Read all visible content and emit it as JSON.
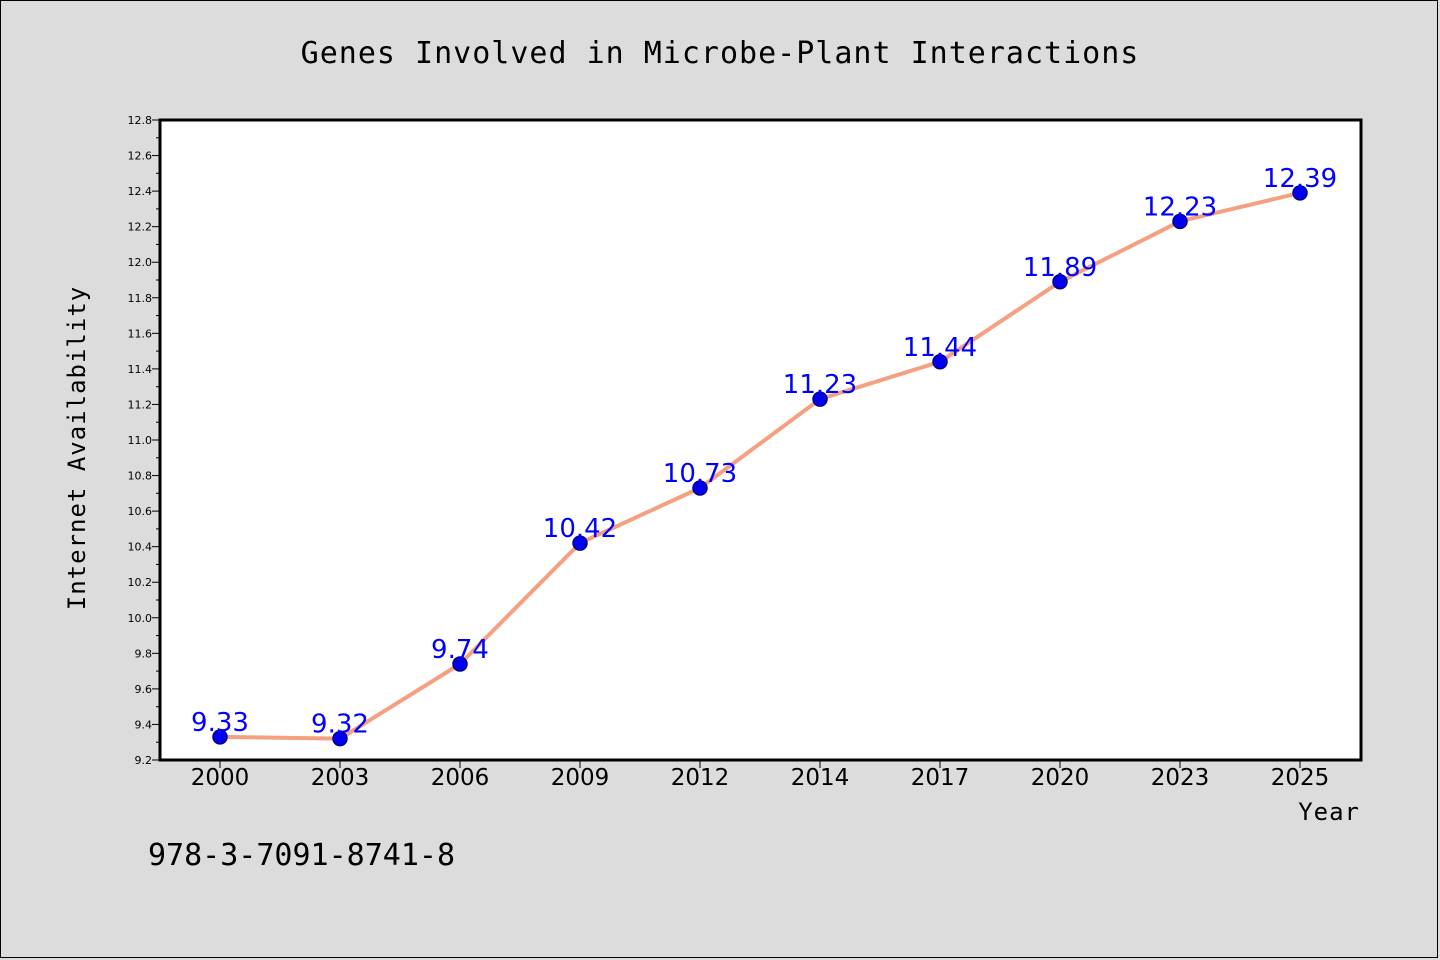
{
  "colors": {
    "background": "#dcdcdc",
    "plot_area": "#ffffff",
    "line": "#f5a080",
    "marker_fill": "#0000ee",
    "marker_edge": "#00008b",
    "data_label": "#0000ff"
  },
  "caption": "978-3-7091-8741-8",
  "chart_data": {
    "type": "line",
    "title": "Genes Involved in Microbe-Plant Interactions",
    "xlabel": "Year",
    "ylabel": "Internet Availability",
    "categories": [
      "2000",
      "2003",
      "2006",
      "2009",
      "2012",
      "2014",
      "2017",
      "2020",
      "2023",
      "2025"
    ],
    "series": [
      {
        "values": [
          9.33,
          9.32,
          9.74,
          10.42,
          10.73,
          11.23,
          11.44,
          11.89,
          12.23,
          12.39
        ],
        "labels": [
          "9.33",
          "9.32",
          "9.74",
          "10.42",
          "10.73",
          "11.23",
          "11.44",
          "11.89",
          "12.23",
          "12.39"
        ]
      }
    ],
    "ylim": [
      9.2,
      12.8
    ],
    "yticks": [
      "9.2",
      "9.4",
      "9.6",
      "9.8",
      "10.0",
      "10.2",
      "10.4",
      "10.6",
      "10.8",
      "11.0",
      "11.2",
      "11.4",
      "11.6",
      "11.8",
      "12.0",
      "12.2",
      "12.4",
      "12.6",
      "12.8"
    ],
    "grid": false,
    "legend": "none",
    "markers": "circle",
    "data_labels": true
  }
}
